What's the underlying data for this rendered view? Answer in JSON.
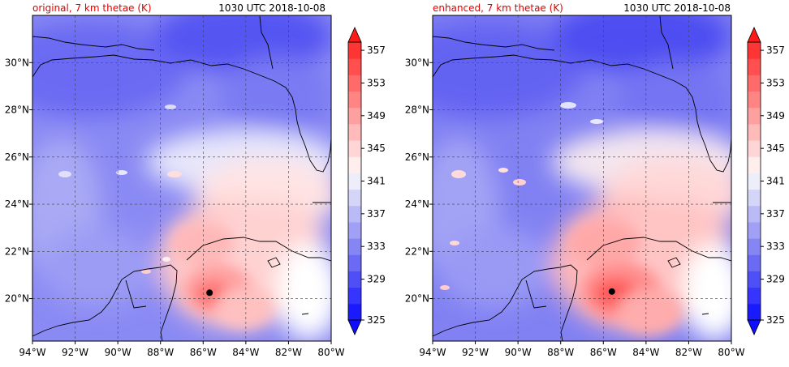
{
  "panels": [
    {
      "title": "original, 7 km thetae (K)",
      "time": "1030 UTC 2018-10-08",
      "storm_center": {
        "lon": -85.7,
        "lat": 20.25
      }
    },
    {
      "title": "enhanced, 7 km thetae (K)",
      "time": "1030 UTC 2018-10-08",
      "storm_center": {
        "lon": -85.6,
        "lat": 20.3
      }
    }
  ],
  "map_extent": {
    "lon": [
      -94,
      -80
    ],
    "lat": [
      18.2,
      32
    ]
  },
  "lon_ticks": [
    {
      "value": -94,
      "label": "94°W"
    },
    {
      "value": -92,
      "label": "92°W"
    },
    {
      "value": -90,
      "label": "90°W"
    },
    {
      "value": -88,
      "label": "88°W"
    },
    {
      "value": -86,
      "label": "86°W"
    },
    {
      "value": -84,
      "label": "84°W"
    },
    {
      "value": -82,
      "label": "82°W"
    },
    {
      "value": -80,
      "label": "80°W"
    }
  ],
  "lat_ticks": [
    {
      "value": 20,
      "label": "20°N"
    },
    {
      "value": 22,
      "label": "22°N"
    },
    {
      "value": 24,
      "label": "24°N"
    },
    {
      "value": 26,
      "label": "26°N"
    },
    {
      "value": 28,
      "label": "28°N"
    },
    {
      "value": 30,
      "label": "30°N"
    }
  ],
  "colorbar": {
    "min": 325,
    "max": 359,
    "tick_labels": [
      "325",
      "329",
      "333",
      "337",
      "341",
      "345",
      "349",
      "353",
      "357"
    ],
    "levels": [
      325,
      327,
      329,
      331,
      333,
      335,
      337,
      339,
      341,
      343,
      345,
      347,
      349,
      351,
      353,
      355,
      357,
      359
    ],
    "colors": [
      "#1a1aff",
      "#3535ff",
      "#4f4ff8",
      "#6a6af5",
      "#8585f4",
      "#a0a0f5",
      "#babaf6",
      "#d5d5f8",
      "#eeeefb",
      "#ffeeee",
      "#ffd5d5",
      "#ffbaba",
      "#ffa0a0",
      "#ff8585",
      "#ff6a6a",
      "#ff4f4f",
      "#ff3535"
    ],
    "under_color": "#0d0dff",
    "over_color": "#ff1a1a"
  },
  "colors": {
    "title_red": "#e00000",
    "land_line": "#000000",
    "grid": "#444444"
  }
}
